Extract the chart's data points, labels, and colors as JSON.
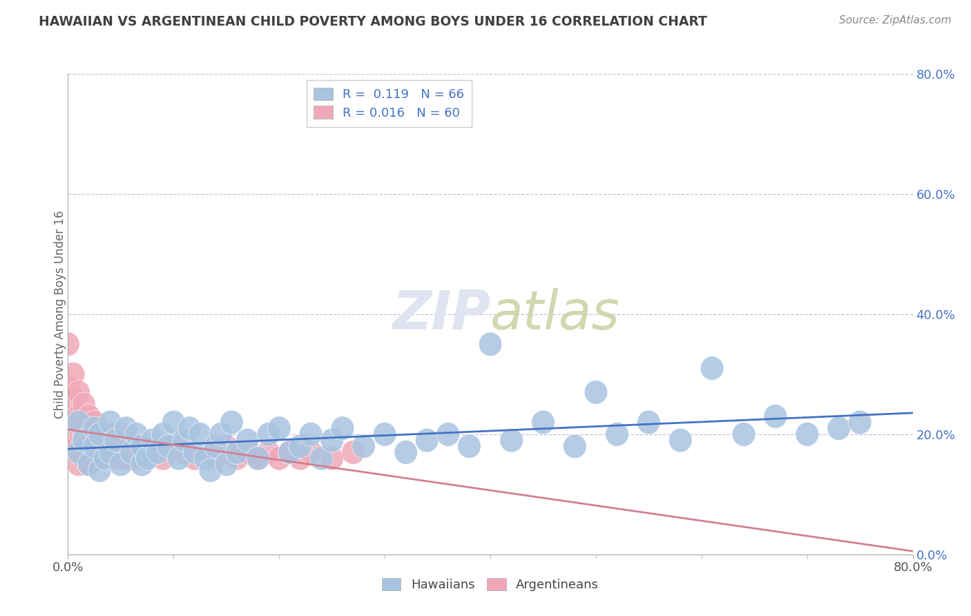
{
  "title": "HAWAIIAN VS ARGENTINEAN CHILD POVERTY AMONG BOYS UNDER 16 CORRELATION CHART",
  "source": "Source: ZipAtlas.com",
  "ylabel": "Child Poverty Among Boys Under 16",
  "xlim": [
    0.0,
    0.8
  ],
  "ylim": [
    0.0,
    0.8
  ],
  "right_ytick_labels": [
    "0.0%",
    "20.0%",
    "40.0%",
    "60.0%",
    "80.0%"
  ],
  "right_ytick_positions": [
    0.0,
    0.2,
    0.4,
    0.6,
    0.8
  ],
  "hawaiian_R": 0.119,
  "hawaiian_N": 66,
  "argentinean_R": 0.016,
  "argentinean_N": 60,
  "hawaiian_color": "#a8c4e0",
  "argentinean_color": "#f0a8b8",
  "hawaiian_line_color": "#4472c4",
  "argentinean_line_color": "#d08090",
  "background_color": "#ffffff",
  "watermark_color": "#e0e4f0",
  "grid_color": "#c0c0d8",
  "label_color": "#4472c4",
  "title_color": "#404040",
  "source_color": "#888888",
  "tick_color": "#555555",
  "hawaiians_x": [
    0.01,
    0.01,
    0.015,
    0.02,
    0.025,
    0.025,
    0.03,
    0.03,
    0.035,
    0.04,
    0.04,
    0.045,
    0.05,
    0.055,
    0.06,
    0.065,
    0.07,
    0.07,
    0.075,
    0.08,
    0.085,
    0.09,
    0.095,
    0.1,
    0.105,
    0.11,
    0.115,
    0.12,
    0.125,
    0.13,
    0.135,
    0.14,
    0.145,
    0.15,
    0.155,
    0.16,
    0.17,
    0.18,
    0.19,
    0.2,
    0.21,
    0.22,
    0.23,
    0.24,
    0.25,
    0.26,
    0.28,
    0.3,
    0.32,
    0.34,
    0.36,
    0.38,
    0.4,
    0.42,
    0.45,
    0.48,
    0.5,
    0.52,
    0.55,
    0.58,
    0.61,
    0.64,
    0.67,
    0.7,
    0.73,
    0.75
  ],
  "hawaiians_y": [
    0.22,
    0.17,
    0.19,
    0.15,
    0.21,
    0.18,
    0.14,
    0.2,
    0.16,
    0.17,
    0.22,
    0.19,
    0.15,
    0.21,
    0.17,
    0.2,
    0.15,
    0.18,
    0.16,
    0.19,
    0.17,
    0.2,
    0.18,
    0.22,
    0.16,
    0.19,
    0.21,
    0.17,
    0.2,
    0.16,
    0.14,
    0.18,
    0.2,
    0.15,
    0.22,
    0.17,
    0.19,
    0.16,
    0.2,
    0.21,
    0.17,
    0.18,
    0.2,
    0.16,
    0.19,
    0.21,
    0.18,
    0.2,
    0.17,
    0.19,
    0.2,
    0.18,
    0.35,
    0.19,
    0.22,
    0.18,
    0.27,
    0.2,
    0.22,
    0.19,
    0.31,
    0.2,
    0.23,
    0.2,
    0.21,
    0.22
  ],
  "argentineans_x": [
    0.0,
    0.0,
    0.0,
    0.0,
    0.005,
    0.005,
    0.005,
    0.005,
    0.008,
    0.01,
    0.01,
    0.01,
    0.01,
    0.012,
    0.015,
    0.015,
    0.015,
    0.018,
    0.02,
    0.02,
    0.02,
    0.022,
    0.025,
    0.025,
    0.028,
    0.03,
    0.03,
    0.032,
    0.035,
    0.035,
    0.038,
    0.04,
    0.04,
    0.042,
    0.045,
    0.048,
    0.05,
    0.05,
    0.055,
    0.06,
    0.065,
    0.07,
    0.08,
    0.09,
    0.1,
    0.11,
    0.12,
    0.13,
    0.14,
    0.15,
    0.16,
    0.17,
    0.18,
    0.19,
    0.2,
    0.21,
    0.22,
    0.23,
    0.25,
    0.27
  ],
  "argentineans_y": [
    0.2,
    0.22,
    0.28,
    0.35,
    0.18,
    0.22,
    0.26,
    0.3,
    0.2,
    0.15,
    0.19,
    0.23,
    0.27,
    0.2,
    0.16,
    0.2,
    0.25,
    0.22,
    0.15,
    0.19,
    0.23,
    0.2,
    0.17,
    0.22,
    0.19,
    0.16,
    0.2,
    0.18,
    0.16,
    0.2,
    0.18,
    0.16,
    0.2,
    0.18,
    0.17,
    0.19,
    0.16,
    0.2,
    0.18,
    0.16,
    0.18,
    0.16,
    0.17,
    0.16,
    0.18,
    0.17,
    0.16,
    0.17,
    0.16,
    0.18,
    0.16,
    0.17,
    0.16,
    0.17,
    0.16,
    0.17,
    0.16,
    0.17,
    0.16,
    0.17
  ]
}
